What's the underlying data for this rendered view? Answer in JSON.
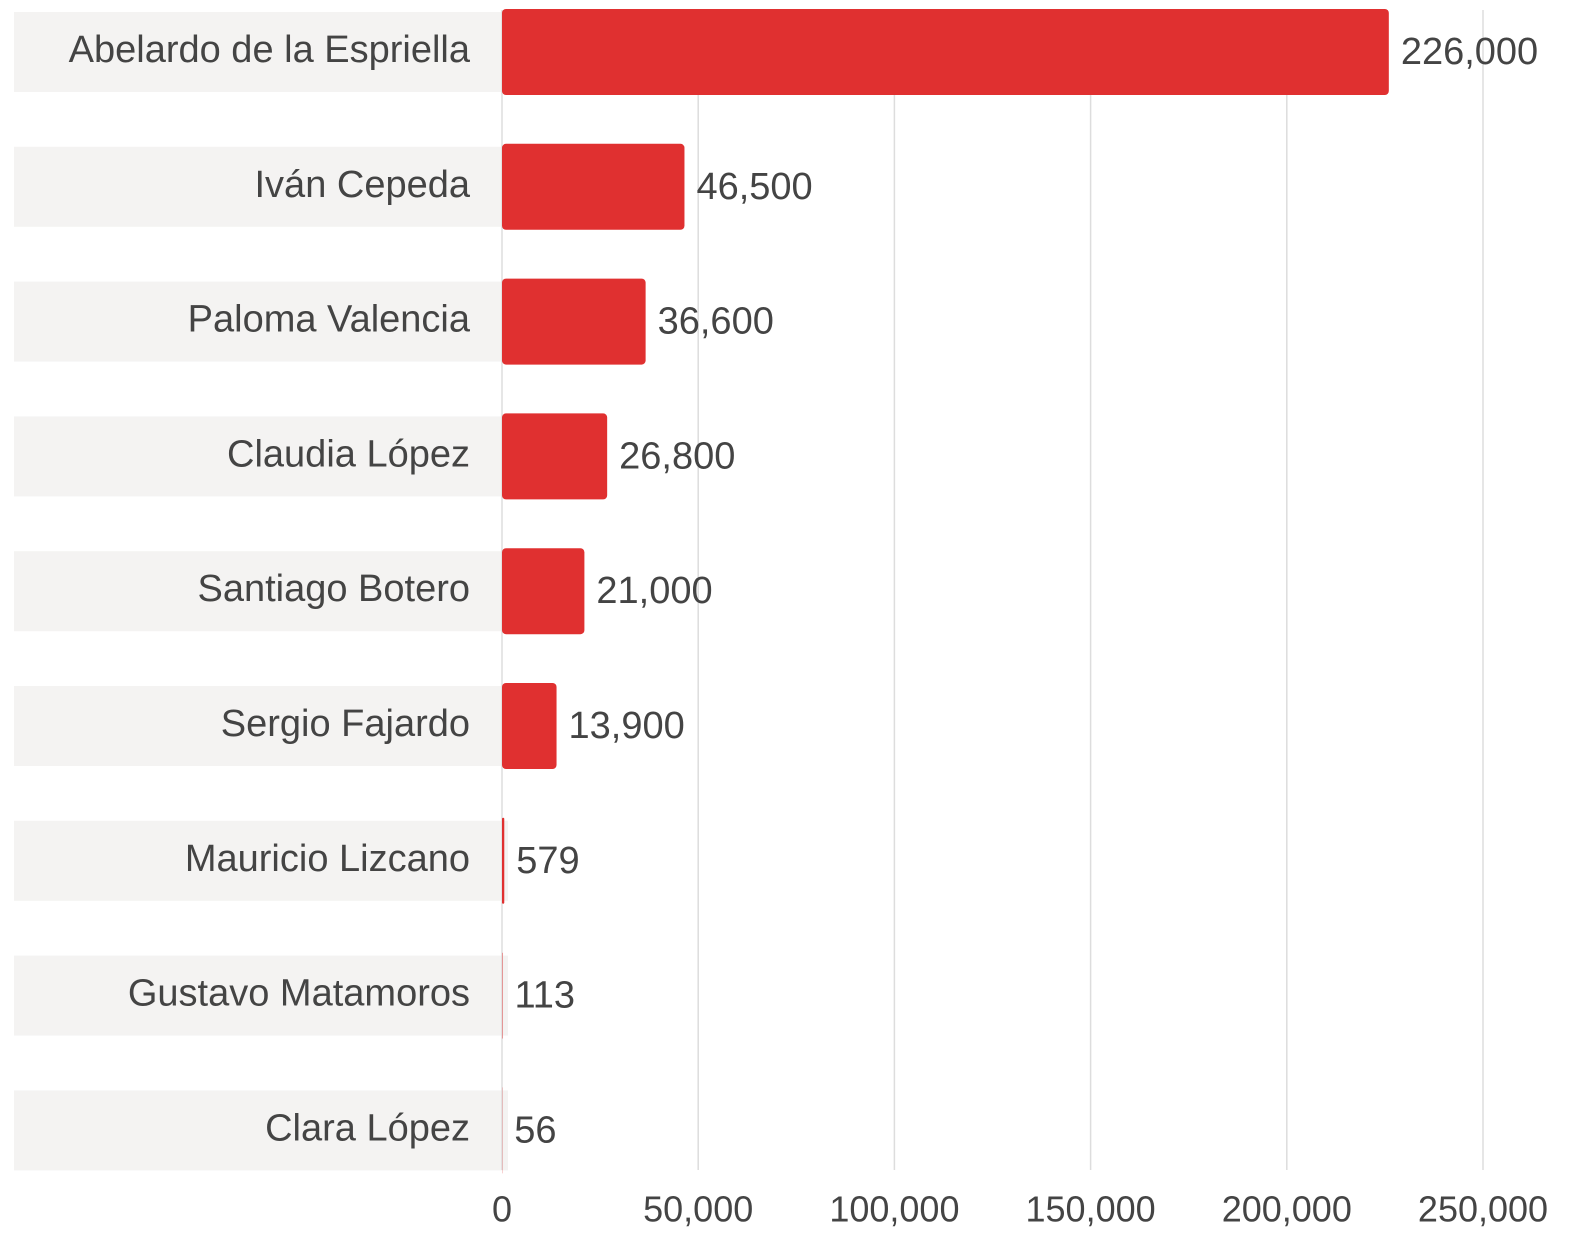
{
  "chart_data": {
    "type": "barh",
    "categories": [
      "Abelardo de la Espriella",
      "Iván Cepeda",
      "Paloma Valencia",
      "Claudia López",
      "Santiago Botero",
      "Sergio Fajardo",
      "Mauricio Lizcano",
      "Gustavo Matamoros",
      "Clara López"
    ],
    "values": [
      226000,
      46500,
      36600,
      26800,
      21000,
      13900,
      579,
      113,
      56
    ],
    "value_labels": [
      "226,000",
      "46,500",
      "36,600",
      "26,800",
      "21,000",
      "13,900",
      "579",
      "113",
      "56"
    ],
    "color": "#e03030",
    "xlim": [
      0,
      250000
    ],
    "xticks": [
      0,
      {
        "value": 50000,
        "label": "50,000"
      },
      {
        "value": 100000,
        "label": "100,000"
      },
      {
        "value": 150000,
        "label": "150,000"
      },
      {
        "value": 200000,
        "label": "200,000"
      },
      {
        "value": 250000,
        "label": "250,000"
      }
    ],
    "grid": true
  }
}
